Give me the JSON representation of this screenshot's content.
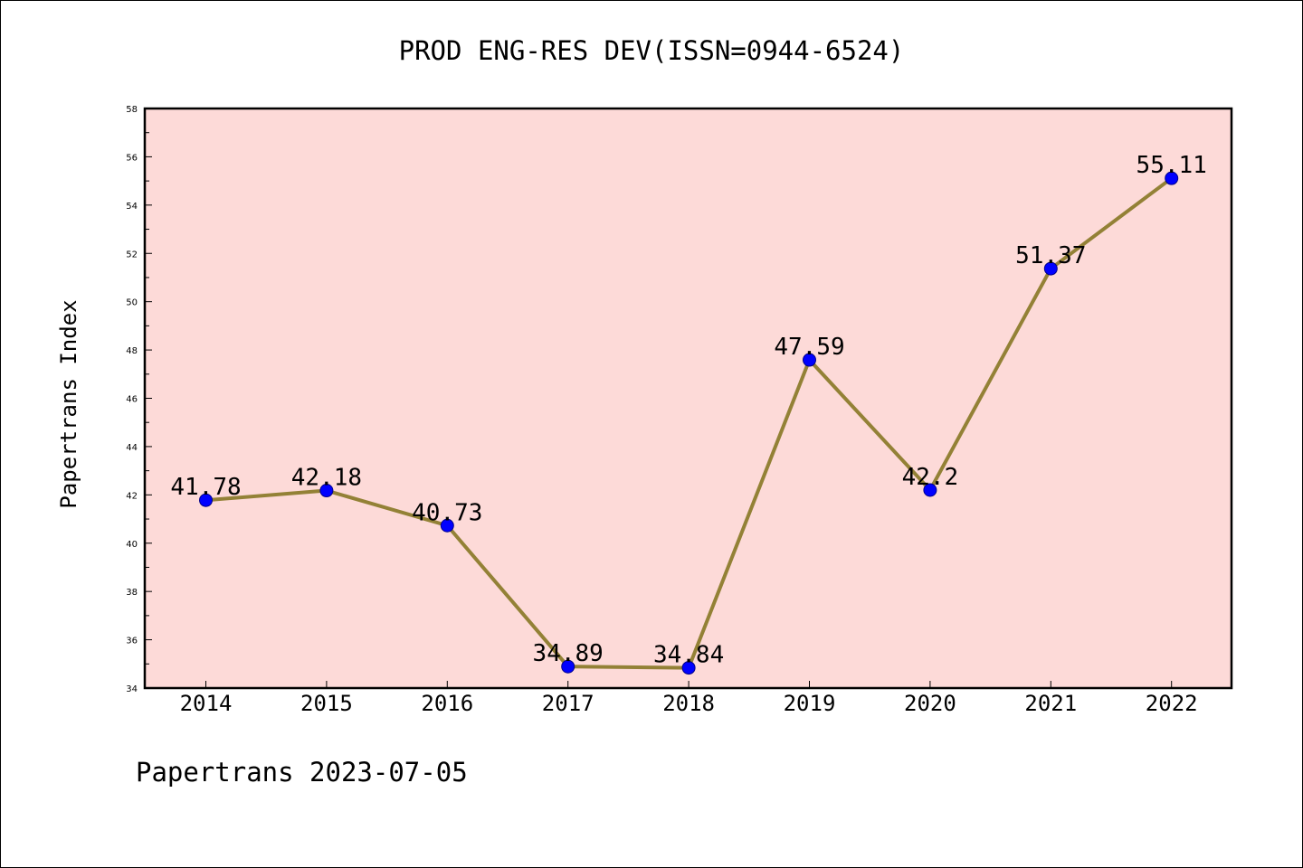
{
  "chart_data": {
    "type": "line",
    "title": "PROD ENG-RES DEV(ISSN=0944-6524)",
    "xlabel": "",
    "ylabel": "Papertrans Index",
    "footer": "Papertrans 2023-07-05",
    "categories": [
      "2014",
      "2015",
      "2016",
      "2017",
      "2018",
      "2019",
      "2020",
      "2021",
      "2022"
    ],
    "values": [
      41.78,
      42.18,
      40.73,
      34.89,
      34.84,
      47.59,
      42.2,
      51.37,
      55.11
    ],
    "data_labels": [
      "41.78",
      "42.18",
      "40.73",
      "34.89",
      "34.84",
      "47.59",
      "42.2",
      "51.37",
      "55.11"
    ],
    "y_ticks": [
      "34",
      "36",
      "38",
      "40",
      "42",
      "44",
      "46",
      "48",
      "50",
      "52",
      "54",
      "56",
      "58"
    ],
    "ylim": [
      34,
      58
    ],
    "grid": false,
    "legend": "none",
    "colors": {
      "plot_background": "#fddad8",
      "line": "#938136",
      "marker": "#0000ff",
      "axis": "#000000"
    }
  }
}
